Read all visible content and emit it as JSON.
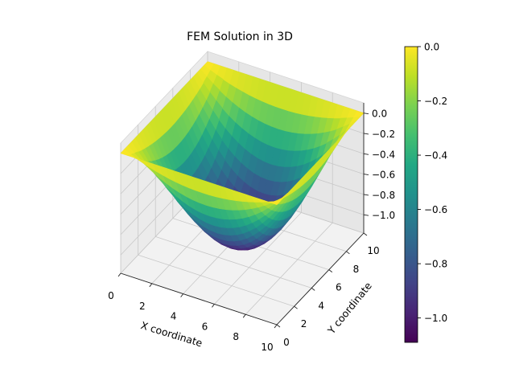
{
  "chart_data": {
    "type": "surface3d",
    "title": "FEM Solution in 3D",
    "xlabel": "X coordinate",
    "ylabel": "Y coordinate",
    "zlabel": "",
    "xlim": [
      0,
      10
    ],
    "ylim": [
      0,
      10
    ],
    "zlim": [
      -1.09,
      0.0
    ],
    "x_ticks": [
      0,
      2,
      4,
      6,
      8,
      10
    ],
    "y_ticks": [
      0,
      2,
      4,
      6,
      8,
      10
    ],
    "z_ticks": [
      0.0,
      -0.2,
      -0.4,
      -0.6,
      -0.8,
      -1.0
    ],
    "x_tick_labels": [
      "0",
      "2",
      "4",
      "6",
      "8",
      "10"
    ],
    "y_tick_labels": [
      "0",
      "2",
      "4",
      "6",
      "8",
      "10"
    ],
    "z_tick_labels": [
      "0.0",
      "−0.2",
      "−0.4",
      "−0.6",
      "−0.8",
      "−1.0"
    ],
    "colormap": "viridis",
    "surface": {
      "description_of_values": "z(x,y) minimum about -1.09 at center (5,5), z = 0 on the boundary",
      "z_min": -1.09,
      "z_max": 0.0,
      "min_at": [
        5,
        5
      ]
    },
    "colorbar": {
      "range": [
        -1.09,
        0.0
      ],
      "ticks": [
        0.0,
        -0.2,
        -0.4,
        -0.6,
        -0.8,
        -1.0
      ],
      "tick_labels": [
        "0.0",
        "−0.2",
        "−0.4",
        "−0.6",
        "−0.8",
        "−1.0"
      ]
    }
  }
}
